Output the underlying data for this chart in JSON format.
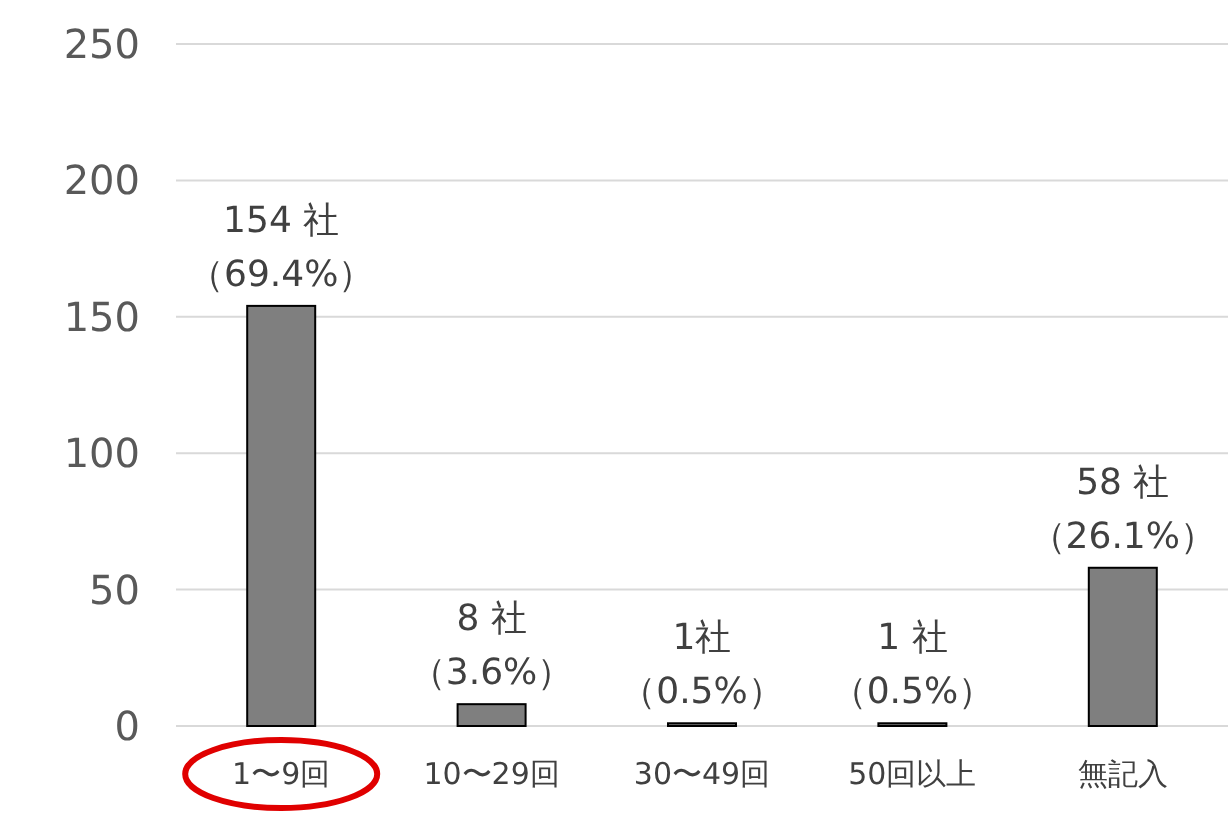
{
  "chart_data": {
    "type": "bar",
    "categories": [
      "1〜9回",
      "10〜29回",
      "30〜49回",
      "50回以上",
      "無記入"
    ],
    "values": [
      154,
      8,
      1,
      1,
      58
    ],
    "value_labels": [
      "154 社（69.4%）",
      "8 社（3.6%）",
      "1社（0.5%）",
      "1 社（0.5%）",
      "58 社（26.1%）"
    ],
    "color": "#7f7f7f",
    "ylim": [
      0,
      250
    ],
    "yticks": [
      0,
      50,
      100,
      150,
      200,
      250
    ],
    "grid": "y"
  }
}
